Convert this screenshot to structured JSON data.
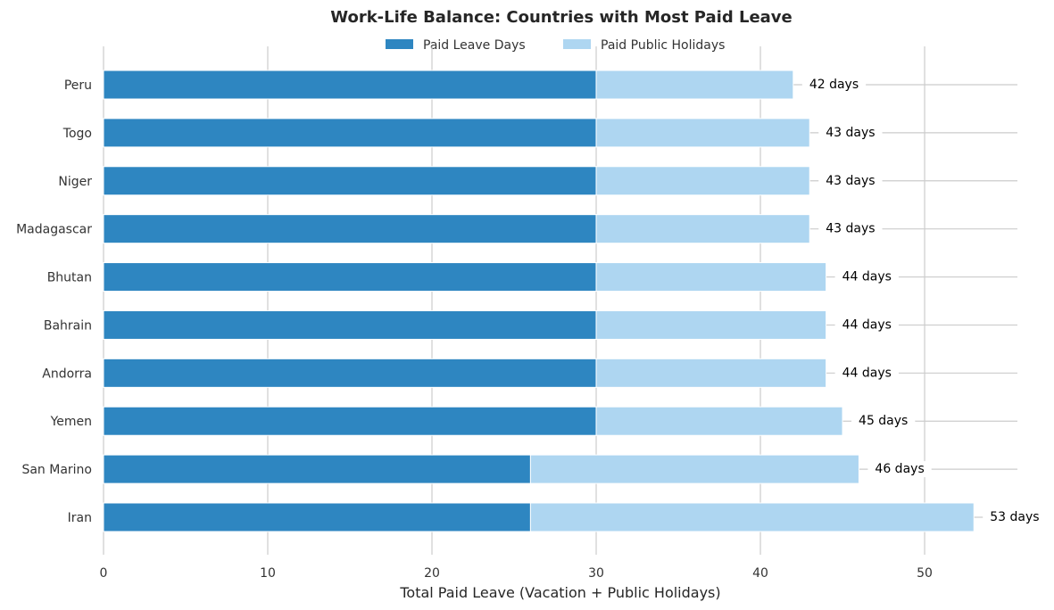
{
  "chart_data": {
    "type": "bar",
    "orientation": "horizontal",
    "stacked": true,
    "title": "Work-Life Balance: Countries with Most Paid Leave",
    "xlabel": "Total Paid Leave (Vacation + Public Holidays)",
    "ylabel": "",
    "xlim": [
      0,
      55.65
    ],
    "xticks": [
      0,
      10,
      20,
      30,
      40,
      50
    ],
    "grid": true,
    "legend_position": "top-center",
    "categories": [
      "Iran",
      "San Marino",
      "Yemen",
      "Andorra",
      "Bahrain",
      "Bhutan",
      "Madagascar",
      "Niger",
      "Togo",
      "Peru"
    ],
    "series": [
      {
        "name": "Paid Leave Days",
        "color": "#2e86c1",
        "values": [
          26,
          26,
          30,
          30,
          30,
          30,
          30,
          30,
          30,
          30
        ]
      },
      {
        "name": "Paid Public Holidays",
        "color": "#aed6f1",
        "values": [
          27,
          20,
          15,
          14,
          14,
          14,
          13,
          13,
          13,
          12
        ]
      }
    ],
    "totals": [
      53,
      46,
      45,
      44,
      44,
      44,
      43,
      43,
      43,
      42
    ],
    "total_labels": [
      "53 days",
      "46 days",
      "45 days",
      "44 days",
      "44 days",
      "44 days",
      "43 days",
      "43 days",
      "43 days",
      "42 days"
    ]
  }
}
